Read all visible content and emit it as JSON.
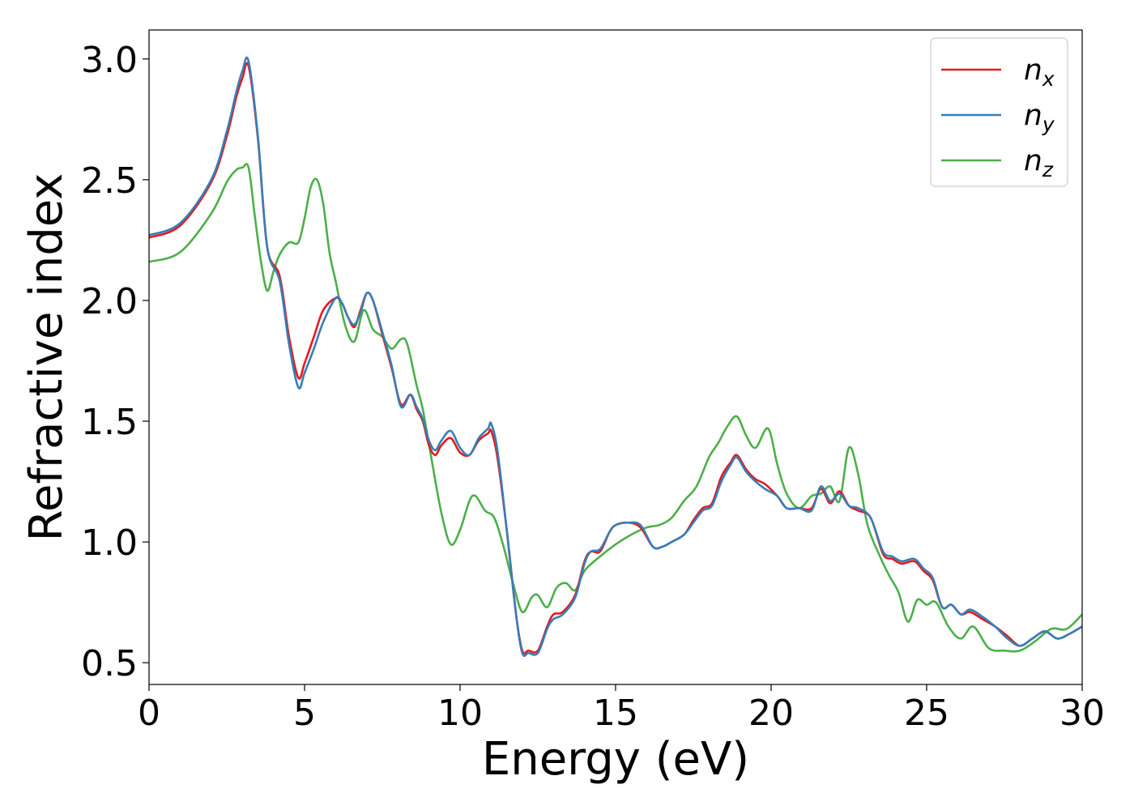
{
  "chart_data": {
    "type": "line",
    "title": "",
    "xlabel": "Energy (eV)",
    "ylabel": "Refractive index",
    "xlim": [
      0,
      30
    ],
    "ylim": [
      0.41,
      3.12
    ],
    "x_ticks": [
      0,
      5,
      10,
      15,
      20,
      25,
      30
    ],
    "x_tick_labels": [
      "0",
      "5",
      "10",
      "15",
      "20",
      "25",
      "30"
    ],
    "y_ticks": [
      0.5,
      1.0,
      1.5,
      2.0,
      2.5,
      3.0
    ],
    "y_tick_labels": [
      "0.5",
      "1.0",
      "1.5",
      "2.0",
      "2.5",
      "3.0"
    ],
    "grid": false,
    "legend_position": "top-right",
    "series": [
      {
        "name": "n",
        "subscript": "x",
        "color": "#e41a1c",
        "x": [
          0,
          1,
          2,
          2.5,
          2.8,
          3.0,
          3.2,
          3.5,
          3.8,
          4.2,
          4.5,
          4.8,
          5.0,
          5.3,
          5.6,
          6.0,
          6.2,
          6.4,
          6.6,
          6.8,
          7.0,
          7.2,
          7.5,
          7.8,
          8.1,
          8.4,
          8.6,
          8.8,
          9.0,
          9.2,
          9.4,
          9.7,
          10.0,
          10.3,
          10.6,
          10.9,
          11.0,
          11.2,
          11.5,
          11.8,
          12.0,
          12.2,
          12.5,
          12.8,
          13.0,
          13.3,
          13.7,
          14.0,
          14.2,
          14.5,
          14.8,
          15.0,
          15.4,
          15.8,
          16.2,
          16.5,
          16.8,
          17.2,
          17.5,
          17.8,
          18.1,
          18.4,
          18.7,
          18.9,
          19.2,
          19.5,
          19.8,
          20.2,
          20.5,
          20.9,
          21.3,
          21.6,
          21.9,
          22.2,
          22.5,
          22.8,
          23.2,
          23.6,
          23.9,
          24.2,
          24.6,
          24.9,
          25.2,
          25.5,
          25.8,
          26.1,
          26.4,
          26.8,
          27.2,
          27.6,
          28.0,
          28.4,
          28.8,
          29.2,
          29.6,
          30.0
        ],
        "values": [
          2.26,
          2.31,
          2.49,
          2.68,
          2.84,
          2.92,
          2.97,
          2.67,
          2.22,
          2.1,
          1.85,
          1.68,
          1.74,
          1.85,
          1.96,
          2.01,
          1.99,
          1.93,
          1.89,
          1.96,
          2.03,
          2.0,
          1.86,
          1.72,
          1.57,
          1.61,
          1.55,
          1.5,
          1.4,
          1.36,
          1.4,
          1.43,
          1.37,
          1.36,
          1.42,
          1.45,
          1.46,
          1.35,
          1.05,
          0.7,
          0.55,
          0.55,
          0.55,
          0.65,
          0.7,
          0.71,
          0.78,
          0.92,
          0.96,
          0.96,
          1.04,
          1.07,
          1.08,
          1.06,
          0.98,
          0.98,
          1.0,
          1.03,
          1.09,
          1.14,
          1.16,
          1.27,
          1.33,
          1.36,
          1.3,
          1.26,
          1.24,
          1.19,
          1.14,
          1.14,
          1.14,
          1.22,
          1.16,
          1.21,
          1.15,
          1.13,
          1.1,
          0.95,
          0.93,
          0.91,
          0.92,
          0.88,
          0.84,
          0.73,
          0.74,
          0.7,
          0.71,
          0.68,
          0.65,
          0.61,
          0.57,
          0.6,
          0.63,
          0.6,
          0.62,
          0.65
        ]
      },
      {
        "name": "n",
        "subscript": "y",
        "color": "#377eb8",
        "x": [
          0,
          1,
          2,
          2.5,
          2.8,
          3.0,
          3.2,
          3.5,
          3.8,
          4.2,
          4.5,
          4.8,
          5.0,
          5.3,
          5.6,
          6.0,
          6.2,
          6.4,
          6.6,
          6.8,
          7.0,
          7.2,
          7.5,
          7.8,
          8.1,
          8.4,
          8.6,
          8.8,
          9.0,
          9.2,
          9.4,
          9.7,
          10.0,
          10.3,
          10.6,
          10.9,
          11.0,
          11.2,
          11.5,
          11.8,
          12.0,
          12.2,
          12.5,
          12.8,
          13.0,
          13.3,
          13.7,
          14.0,
          14.2,
          14.5,
          14.8,
          15.0,
          15.4,
          15.8,
          16.2,
          16.5,
          16.8,
          17.2,
          17.5,
          17.8,
          18.1,
          18.4,
          18.7,
          18.9,
          19.2,
          19.5,
          19.8,
          20.2,
          20.5,
          20.9,
          21.3,
          21.6,
          21.9,
          22.2,
          22.5,
          22.8,
          23.2,
          23.6,
          23.9,
          24.2,
          24.6,
          24.9,
          25.2,
          25.5,
          25.8,
          26.1,
          26.4,
          26.8,
          27.2,
          27.6,
          28.0,
          28.4,
          28.8,
          29.2,
          29.6,
          30.0
        ],
        "values": [
          2.27,
          2.32,
          2.5,
          2.7,
          2.86,
          2.95,
          2.99,
          2.68,
          2.22,
          2.08,
          1.82,
          1.64,
          1.7,
          1.8,
          1.91,
          2.01,
          1.99,
          1.93,
          1.9,
          1.95,
          2.03,
          2.0,
          1.87,
          1.73,
          1.56,
          1.61,
          1.56,
          1.51,
          1.42,
          1.38,
          1.42,
          1.46,
          1.39,
          1.36,
          1.43,
          1.47,
          1.49,
          1.38,
          1.05,
          0.7,
          0.54,
          0.54,
          0.54,
          0.64,
          0.68,
          0.7,
          0.77,
          0.91,
          0.96,
          0.97,
          1.04,
          1.07,
          1.08,
          1.07,
          0.98,
          0.98,
          1.0,
          1.03,
          1.08,
          1.13,
          1.15,
          1.25,
          1.32,
          1.35,
          1.29,
          1.25,
          1.22,
          1.19,
          1.14,
          1.14,
          1.13,
          1.23,
          1.17,
          1.2,
          1.15,
          1.14,
          1.1,
          0.96,
          0.94,
          0.92,
          0.93,
          0.89,
          0.85,
          0.73,
          0.74,
          0.7,
          0.72,
          0.69,
          0.65,
          0.6,
          0.57,
          0.6,
          0.63,
          0.6,
          0.62,
          0.65
        ]
      },
      {
        "name": "n",
        "subscript": "z",
        "color": "#4daf4a",
        "x": [
          0,
          1,
          2,
          2.5,
          2.8,
          3.0,
          3.2,
          3.4,
          3.6,
          3.8,
          4.0,
          4.2,
          4.5,
          4.8,
          5.0,
          5.2,
          5.4,
          5.6,
          5.8,
          6.0,
          6.3,
          6.6,
          6.9,
          7.2,
          7.5,
          7.8,
          8.1,
          8.3,
          8.6,
          8.8,
          9.1,
          9.4,
          9.7,
          10.0,
          10.3,
          10.5,
          10.8,
          11.1,
          11.4,
          11.7,
          12.0,
          12.3,
          12.5,
          12.8,
          13.1,
          13.4,
          13.7,
          14.0,
          14.5,
          15.0,
          15.5,
          16.0,
          16.4,
          16.8,
          17.2,
          17.6,
          18.0,
          18.3,
          18.6,
          18.9,
          19.2,
          19.5,
          19.9,
          20.2,
          20.5,
          20.9,
          21.3,
          21.6,
          21.9,
          22.2,
          22.5,
          22.8,
          23.1,
          23.5,
          23.8,
          24.1,
          24.4,
          24.7,
          25.0,
          25.3,
          25.7,
          26.1,
          26.5,
          27.0,
          27.5,
          28.0,
          28.5,
          29.0,
          29.5,
          30.0
        ],
        "values": [
          2.16,
          2.2,
          2.36,
          2.49,
          2.54,
          2.55,
          2.55,
          2.35,
          2.16,
          2.04,
          2.12,
          2.19,
          2.24,
          2.24,
          2.34,
          2.47,
          2.5,
          2.4,
          2.2,
          2.08,
          1.9,
          1.83,
          1.96,
          1.88,
          1.85,
          1.8,
          1.84,
          1.82,
          1.65,
          1.55,
          1.33,
          1.12,
          0.99,
          1.05,
          1.17,
          1.19,
          1.13,
          1.1,
          0.98,
          0.83,
          0.71,
          0.77,
          0.78,
          0.73,
          0.81,
          0.83,
          0.8,
          0.88,
          0.94,
          0.99,
          1.03,
          1.06,
          1.07,
          1.1,
          1.17,
          1.23,
          1.35,
          1.41,
          1.48,
          1.52,
          1.44,
          1.39,
          1.47,
          1.32,
          1.2,
          1.14,
          1.19,
          1.2,
          1.23,
          1.17,
          1.39,
          1.28,
          1.07,
          0.94,
          0.86,
          0.79,
          0.67,
          0.76,
          0.74,
          0.75,
          0.65,
          0.6,
          0.65,
          0.56,
          0.55,
          0.55,
          0.59,
          0.64,
          0.64,
          0.7
        ]
      }
    ]
  }
}
